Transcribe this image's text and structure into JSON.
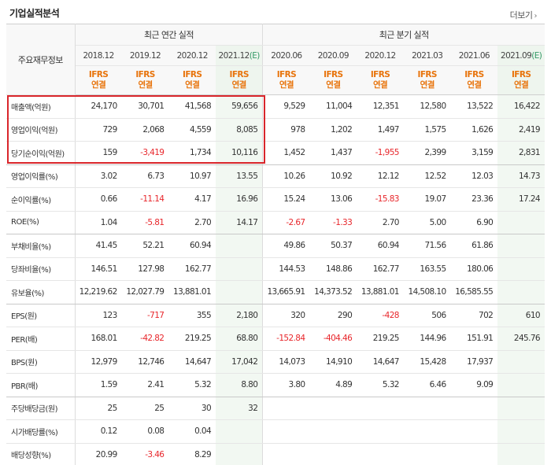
{
  "header": {
    "title": "기업실적분석",
    "more_label": "더보기"
  },
  "table": {
    "label_header": "주요재무정보",
    "annual_group": "최근 연간 실적",
    "quarter_group": "최근 분기 실적",
    "ifrs_top": "IFRS",
    "ifrs_bottom": "연결",
    "est_marker": "(E)",
    "annual_periods": [
      "2018.12",
      "2019.12",
      "2020.12",
      "2021.12"
    ],
    "quarter_periods": [
      "2020.06",
      "2020.09",
      "2020.12",
      "2021.03",
      "2021.06",
      "2021.09"
    ],
    "rows": [
      {
        "label": "매출액(억원)",
        "values": [
          "24,170",
          "30,701",
          "41,568",
          "59,656",
          "9,529",
          "11,004",
          "12,351",
          "12,580",
          "13,522",
          "16,422"
        ]
      },
      {
        "label": "영업이익(억원)",
        "values": [
          "729",
          "2,068",
          "4,559",
          "8,085",
          "978",
          "1,202",
          "1,497",
          "1,575",
          "1,626",
          "2,419"
        ]
      },
      {
        "label": "당기순이익(억원)",
        "values": [
          "159",
          "-3,419",
          "1,734",
          "10,116",
          "1,452",
          "1,437",
          "-1,955",
          "2,399",
          "3,159",
          "2,831"
        ]
      },
      {
        "label": "영업이익률(%)",
        "values": [
          "3.02",
          "6.73",
          "10.97",
          "13.55",
          "10.26",
          "10.92",
          "12.12",
          "12.52",
          "12.03",
          "14.73"
        ]
      },
      {
        "label": "순이익률(%)",
        "values": [
          "0.66",
          "-11.14",
          "4.17",
          "16.96",
          "15.24",
          "13.06",
          "-15.83",
          "19.07",
          "23.36",
          "17.24"
        ]
      },
      {
        "label": "ROE(%)",
        "values": [
          "1.04",
          "-5.81",
          "2.70",
          "14.17",
          "-2.67",
          "-1.33",
          "2.70",
          "5.00",
          "6.90",
          ""
        ]
      },
      {
        "label": "부채비율(%)",
        "values": [
          "41.45",
          "52.21",
          "60.94",
          "",
          "49.86",
          "50.37",
          "60.94",
          "71.56",
          "61.86",
          ""
        ]
      },
      {
        "label": "당좌비율(%)",
        "values": [
          "146.51",
          "127.98",
          "162.77",
          "",
          "144.53",
          "148.86",
          "162.77",
          "163.55",
          "180.06",
          ""
        ]
      },
      {
        "label": "유보율(%)",
        "values": [
          "12,219.62",
          "12,027.79",
          "13,881.01",
          "",
          "13,665.91",
          "14,373.52",
          "13,881.01",
          "14,508.10",
          "16,585.55",
          ""
        ]
      },
      {
        "label": "EPS(원)",
        "values": [
          "123",
          "-717",
          "355",
          "2,180",
          "320",
          "290",
          "-428",
          "506",
          "702",
          "610"
        ]
      },
      {
        "label": "PER(배)",
        "values": [
          "168.01",
          "-42.82",
          "219.25",
          "68.80",
          "-152.84",
          "-404.46",
          "219.25",
          "144.96",
          "151.91",
          "245.76"
        ]
      },
      {
        "label": "BPS(원)",
        "values": [
          "12,979",
          "12,746",
          "14,647",
          "17,042",
          "14,073",
          "14,910",
          "14,647",
          "15,428",
          "17,937",
          ""
        ]
      },
      {
        "label": "PBR(배)",
        "values": [
          "1.59",
          "2.41",
          "5.32",
          "8.80",
          "3.80",
          "4.89",
          "5.32",
          "6.46",
          "9.09",
          ""
        ]
      },
      {
        "label": "주당배당금(원)",
        "values": [
          "25",
          "25",
          "30",
          "32",
          "",
          "",
          "",
          "",
          "",
          ""
        ]
      },
      {
        "label": "시가배당률(%)",
        "values": [
          "0.12",
          "0.08",
          "0.04",
          "",
          "",
          "",
          "",
          "",
          "",
          ""
        ]
      },
      {
        "label": "배당성향(%)",
        "values": [
          "20.99",
          "-3.46",
          "8.29",
          "",
          "",
          "",
          "",
          "",
          "",
          ""
        ]
      }
    ]
  },
  "colors": {
    "negative": "#e8262b",
    "ifrs": "#e8740c",
    "estimate": "#339966",
    "highlight": "#d9262b"
  }
}
